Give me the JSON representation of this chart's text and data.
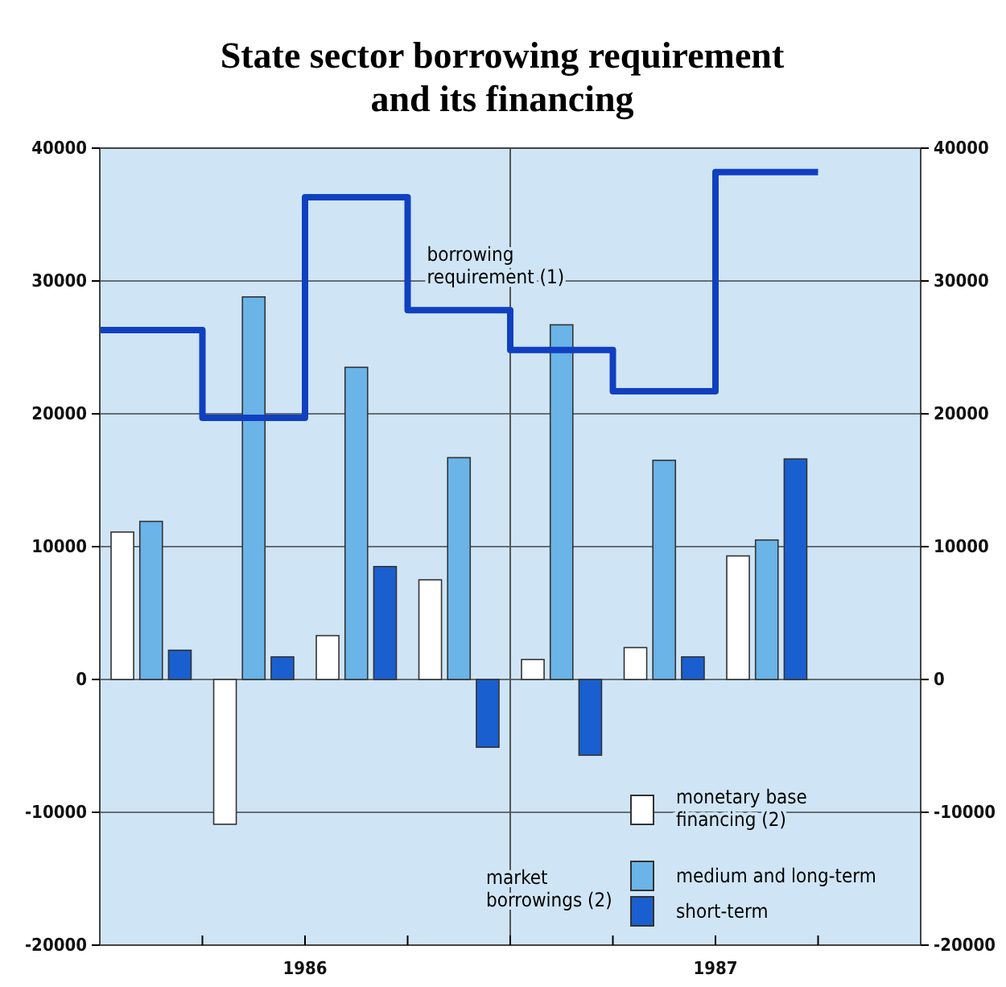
{
  "chart_data": {
    "type": "bar",
    "title": "State sector borrowing requirement and its financing",
    "x": [
      1986.125,
      1986.375,
      1986.625,
      1986.875,
      1987.125,
      1987.375,
      1987.625
    ],
    "xlim": [
      1986,
      1988
    ],
    "xticks": [
      {
        "value": 1986.25,
        "label": null
      },
      {
        "value": 1986.5,
        "label": "1986"
      },
      {
        "value": 1986.75,
        "label": null
      },
      {
        "value": 1987,
        "label": null
      },
      {
        "value": 1987.25,
        "label": null
      },
      {
        "value": 1987.5,
        "label": "1987"
      },
      {
        "value": 1987.75,
        "label": null
      }
    ],
    "ylim": [
      -20000,
      40000
    ],
    "yticks": [
      -20000,
      -10000,
      0,
      10000,
      20000,
      30000,
      40000
    ],
    "y2lim": [
      -20000,
      40000
    ],
    "y2ticks": [
      -20000,
      -10000,
      0,
      10000,
      20000,
      30000,
      40000
    ],
    "grid": "y",
    "legend": "bottom right",
    "ref_lines": [
      {
        "axis": "x",
        "value": 1987,
        "label": null,
        "color": "#555555"
      }
    ],
    "annotations": [
      "market borrowings (2)"
    ],
    "series": [
      {
        "name": "monetary base financing (2)",
        "color": "#ffffff",
        "values": [
          11100,
          -10900,
          3300,
          7500,
          1500,
          2400,
          9300
        ]
      },
      {
        "name": "medium and long-term",
        "color": "#6ab4e8",
        "values": [
          11900,
          28800,
          23500,
          16700,
          26700,
          16500,
          10500
        ]
      },
      {
        "name": "short-term",
        "color": "#1a5fd0",
        "values": [
          2200,
          1700,
          8500,
          -5100,
          -5700,
          1700,
          16600
        ]
      },
      {
        "name": "borrowing requirement (1)",
        "type": "step",
        "color": "#1040c0",
        "x": [
          1986,
          1986.25,
          1986.5,
          1986.75,
          1987,
          1987.25,
          1987.5,
          1987.75
        ],
        "values": [
          26300,
          19700,
          36300,
          27800,
          24800,
          21700,
          38200,
          38200
        ]
      }
    ]
  }
}
